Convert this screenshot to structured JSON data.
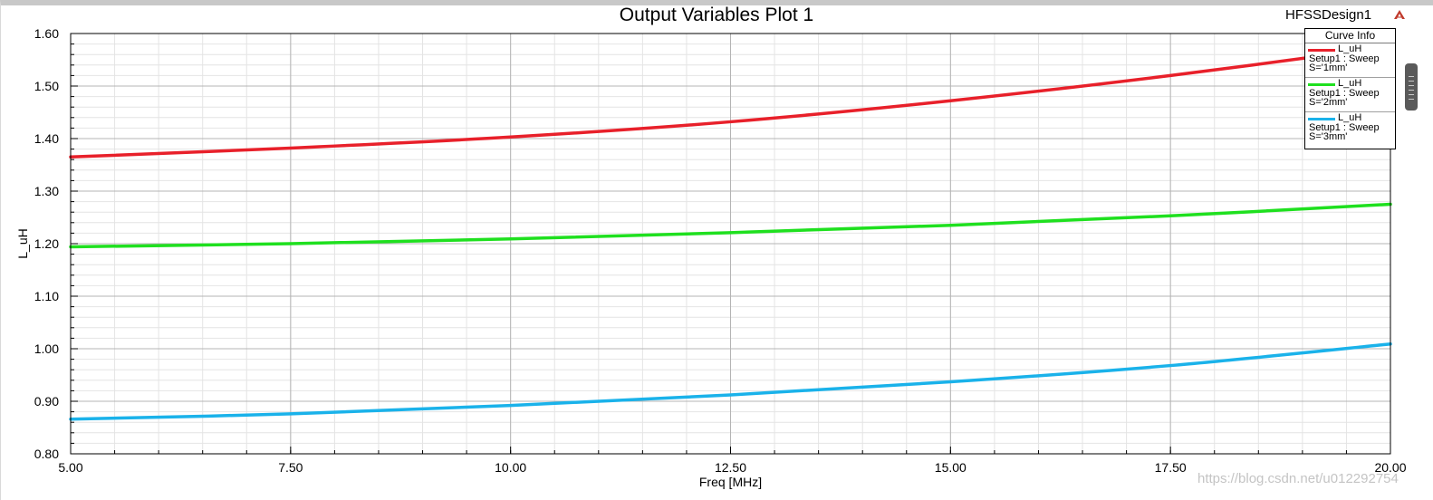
{
  "window": {
    "design_name": "HFSSDesign1",
    "watermark": "https://blog.csdn.net/u012292754"
  },
  "legend": {
    "title": "Curve Info",
    "entries": [
      {
        "name": "L_uH",
        "setup": "Setup1 : Sweep",
        "param": "S='1mm'",
        "color": "#e8202a"
      },
      {
        "name": "L_uH",
        "setup": "Setup1 : Sweep",
        "param": "S='2mm'",
        "color": "#1fe01f"
      },
      {
        "name": "L_uH",
        "setup": "Setup1 : Sweep",
        "param": "S='3mm'",
        "color": "#1ab2ea"
      }
    ]
  },
  "icons": {
    "logo": "ansys-logo-icon"
  },
  "chart_data": {
    "type": "line",
    "title": "Output Variables Plot 1",
    "xlabel": "Freq [MHz]",
    "ylabel": "L_uH",
    "xlim": [
      5.0,
      20.0
    ],
    "ylim": [
      0.8,
      1.6
    ],
    "x_ticks": [
      "5.00",
      "7.50",
      "10.00",
      "12.50",
      "15.00",
      "17.50",
      "20.00"
    ],
    "y_ticks": [
      "0.80",
      "0.90",
      "1.00",
      "1.10",
      "1.20",
      "1.30",
      "1.40",
      "1.50",
      "1.60"
    ],
    "grid": true,
    "legend_position": "top-right",
    "x": [
      5.0,
      7.5,
      10.0,
      12.5,
      15.0,
      17.5,
      20.0
    ],
    "series": [
      {
        "name": "L_uH Setup1 : Sweep S='1mm'",
        "color": "#e8202a",
        "values": [
          1.365,
          1.382,
          1.403,
          1.432,
          1.472,
          1.52,
          1.575
        ]
      },
      {
        "name": "L_uH Setup1 : Sweep S='2mm'",
        "color": "#1fe01f",
        "values": [
          1.194,
          1.2,
          1.209,
          1.221,
          1.235,
          1.253,
          1.275
        ]
      },
      {
        "name": "L_uH Setup1 : Sweep S='3mm'",
        "color": "#1ab2ea",
        "values": [
          0.866,
          0.876,
          0.892,
          0.912,
          0.937,
          0.968,
          1.009
        ]
      }
    ]
  }
}
